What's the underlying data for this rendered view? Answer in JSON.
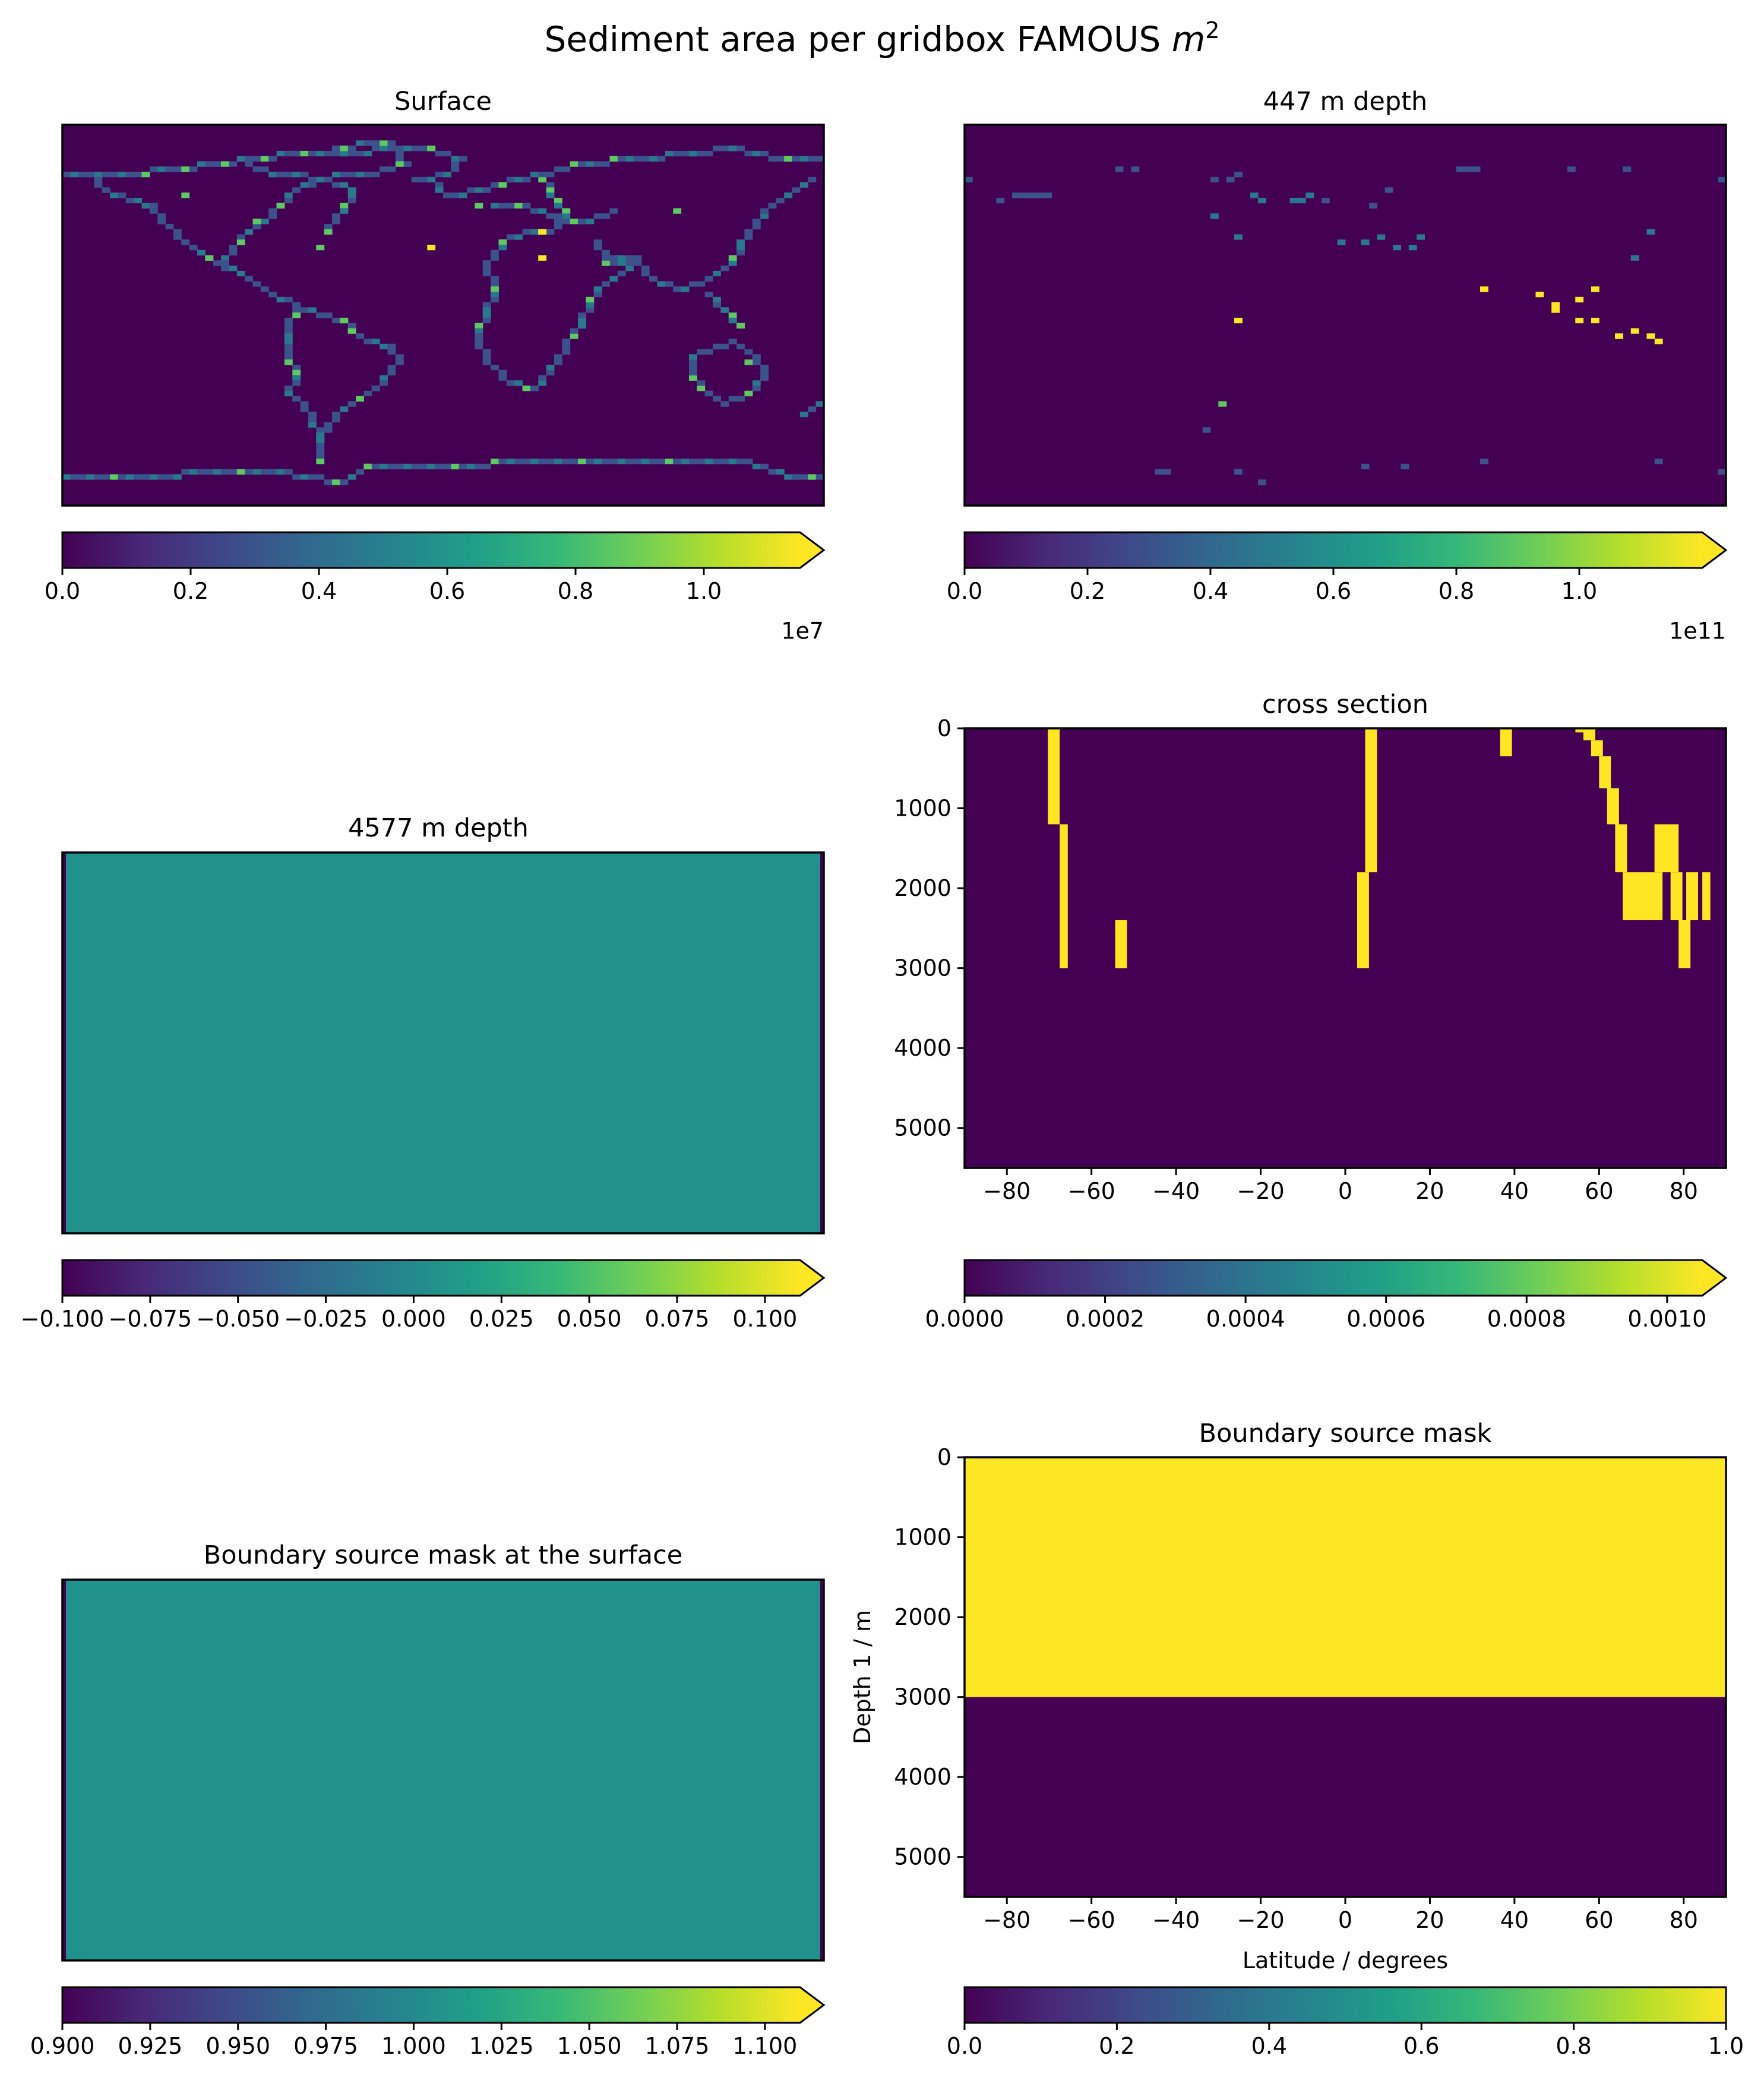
{
  "figure": {
    "suptitle_main": "Sediment area per gridbox FAMOUS ",
    "suptitle_unit": "m",
    "suptitle_exp": "2"
  },
  "colors": {
    "viridis": [
      "#440154",
      "#482878",
      "#3e4989",
      "#31688e",
      "#26828e",
      "#1f9e89",
      "#35b779",
      "#6ece58",
      "#b5de2b",
      "#fde725"
    ],
    "dark": "#440154",
    "mid": "#21918c",
    "bright": "#fde725",
    "coast_low": "#3b528b",
    "coast_mid": "#2a788e",
    "coast_high": "#5ec962"
  },
  "chart_data": [
    {
      "id": "surface",
      "type": "heatmap",
      "title": "Surface",
      "content": "world coastline grid (low values on coasts, high values at scattered points)",
      "colorbar": {
        "extend": "max",
        "ticks": [
          "0.0",
          "0.2",
          "0.4",
          "0.6",
          "0.8",
          "1.0"
        ],
        "tick_values": [
          0,
          0.2,
          0.4,
          0.6,
          0.8,
          1.0
        ],
        "range": [
          0,
          1.15
        ],
        "offset_text": "1e7"
      }
    },
    {
      "id": "depth447",
      "type": "heatmap",
      "title": "447 m depth",
      "content": "sparse points, mostly low values, bright yellow points in the western Pacific",
      "colorbar": {
        "extend": "max",
        "ticks": [
          "0.0",
          "0.2",
          "0.4",
          "0.6",
          "0.8",
          "1.0"
        ],
        "tick_values": [
          0,
          0.2,
          0.4,
          0.6,
          0.8,
          1.0
        ],
        "range": [
          0,
          1.2
        ],
        "offset_text": "1e11"
      }
    },
    {
      "id": "depth4577",
      "type": "heatmap",
      "title": "4577 m  depth",
      "content": "uniform value 0",
      "colorbar": {
        "extend": "max",
        "ticks": [
          "−0.100",
          "−0.075",
          "−0.050",
          "−0.025",
          "0.000",
          "0.025",
          "0.050",
          "0.075",
          "0.100"
        ],
        "tick_values": [
          -0.1,
          -0.075,
          -0.05,
          -0.025,
          0,
          0.025,
          0.05,
          0.075,
          0.1
        ],
        "range": [
          -0.1,
          0.11
        ]
      }
    },
    {
      "id": "cross_section",
      "type": "heatmap",
      "title": "cross section",
      "xlim": [
        -90,
        90
      ],
      "ylim": [
        5500,
        0
      ],
      "xticks": [
        "−80",
        "−60",
        "−40",
        "−20",
        "0",
        "20",
        "40",
        "60",
        "80"
      ],
      "xtick_values": [
        -80,
        -60,
        -40,
        -20,
        0,
        20,
        40,
        60,
        80
      ],
      "yticks": [
        "0",
        "1000",
        "2000",
        "3000",
        "4000",
        "5000"
      ],
      "ytick_values": [
        0,
        1000,
        2000,
        3000,
        4000,
        5000
      ],
      "cells_value_1": [
        [
          -70.3,
          -67.5,
          0,
          1200
        ],
        [
          -67.5,
          -65.6,
          1200,
          3000
        ],
        [
          -54.4,
          -51.6,
          2400,
          3000
        ],
        [
          2.8,
          5.6,
          1800,
          3000
        ],
        [
          4.7,
          7.5,
          0,
          1800
        ],
        [
          36.6,
          39.4,
          0,
          350
        ],
        [
          54.4,
          57.2,
          0,
          50
        ],
        [
          56.3,
          59.1,
          0,
          150
        ],
        [
          58.1,
          60.9,
          150,
          350
        ],
        [
          60.0,
          62.8,
          350,
          750
        ],
        [
          61.9,
          64.7,
          750,
          1200
        ],
        [
          63.8,
          66.6,
          1200,
          1800
        ],
        [
          65.6,
          75.0,
          1800,
          2400
        ],
        [
          73.1,
          78.8,
          1200,
          1800
        ],
        [
          76.9,
          79.7,
          1800,
          2400
        ],
        [
          78.8,
          81.6,
          2400,
          3000
        ],
        [
          80.6,
          83.4,
          1800,
          2400
        ],
        [
          84.4,
          86.3,
          1800,
          2400
        ]
      ],
      "colorbar": {
        "extend": "max",
        "ticks": [
          "0.0000",
          "0.0002",
          "0.0004",
          "0.0006",
          "0.0008",
          "0.0010"
        ],
        "tick_values": [
          0,
          0.0002,
          0.0004,
          0.0006,
          0.0008,
          0.001
        ],
        "range": [
          0,
          0.00105
        ]
      }
    },
    {
      "id": "mask_surface",
      "type": "heatmap",
      "title": "Boundary source mask at the surface",
      "content": "uniform value 1",
      "colorbar": {
        "extend": "max",
        "ticks": [
          "0.900",
          "0.925",
          "0.950",
          "0.975",
          "1.000",
          "1.025",
          "1.050",
          "1.075",
          "1.100"
        ],
        "tick_values": [
          0.9,
          0.925,
          0.95,
          0.975,
          1.0,
          1.025,
          1.05,
          1.075,
          1.1
        ],
        "range": [
          0.9,
          1.11
        ]
      }
    },
    {
      "id": "mask_section",
      "type": "heatmap",
      "title": "Boundary source mask",
      "xlabel": "Latitude / degrees",
      "ylabel": "Depth 1 / m",
      "xlim": [
        -90,
        90
      ],
      "ylim": [
        5500,
        0
      ],
      "xticks": [
        "−80",
        "−60",
        "−40",
        "−20",
        "0",
        "20",
        "40",
        "60",
        "80"
      ],
      "xtick_values": [
        -80,
        -60,
        -40,
        -20,
        0,
        20,
        40,
        60,
        80
      ],
      "yticks": [
        "0",
        "1000",
        "2000",
        "3000",
        "4000",
        "5000"
      ],
      "ytick_values": [
        0,
        1000,
        2000,
        3000,
        4000,
        5000
      ],
      "value_1_depth_range": [
        0,
        3000
      ],
      "value_0_depth_range": [
        3000,
        5500
      ],
      "colorbar": {
        "extend": "neither",
        "ticks": [
          "0.0",
          "0.2",
          "0.4",
          "0.6",
          "0.8",
          "1.0"
        ],
        "tick_values": [
          0,
          0.2,
          0.4,
          0.6,
          0.8,
          1.0
        ],
        "range": [
          0,
          1.0
        ]
      }
    }
  ]
}
